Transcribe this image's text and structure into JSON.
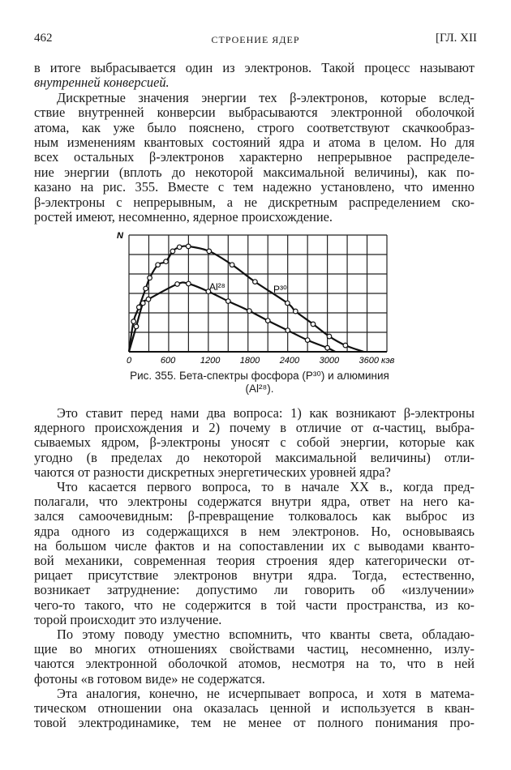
{
  "header": {
    "page_number": "462",
    "running_title": "СТРОЕНИЕ ЯДЕР",
    "chapter": "[ГЛ. XII"
  },
  "top_lines": [
    {
      "text": "в итоге выбрасывается один из электронов. Такой процесс называют",
      "indent": false
    },
    {
      "text": "внутренней конверсией.",
      "indent": false,
      "italic": true,
      "last": true
    },
    {
      "text": "Дискретные значения энергии тех β-электронов, которые вслед-",
      "indent": true
    },
    {
      "text": "ствие внутренней конверсии выбрасываются электронной оболочкой",
      "indent": false
    },
    {
      "text": "атома, как уже было пояснено, строго соответствуют скачкообраз-",
      "indent": false
    },
    {
      "text": "ным изменениям квантовых состояний ядра и атома в целом. Но для",
      "indent": false
    },
    {
      "text": "всех остальных β-электронов характерно непрерывное распределе-",
      "indent": false
    },
    {
      "text": "ние энергии (вплоть до некоторой максимальной величины), как по-",
      "indent": false
    },
    {
      "text": "казано на рис. 355. Вместе с тем надежно установлено, что именно",
      "indent": false
    },
    {
      "text": "β-электроны с непрерывным, а не дискретным распределением ско-",
      "indent": false
    },
    {
      "text": "ростей имеют, несомненно, ядерное происхождение.",
      "indent": false,
      "last": true
    }
  ],
  "figure": {
    "caption_line1": "Рис. 355. Бета-спектры фосфора (P³⁰) и алюминия",
    "caption_line2": "(Al²⁸).",
    "chart_data": {
      "type": "line",
      "ylabel": "N",
      "xlabel": "кэв",
      "x_ticks": [
        "0",
        "600",
        "1200",
        "1800",
        "2400",
        "3000",
        "3600 кэв"
      ],
      "x_tick_values": [
        0,
        600,
        1200,
        1800,
        2400,
        3000,
        3600
      ],
      "xlim": [
        0,
        3900
      ],
      "ylim": [
        0,
        6
      ],
      "grid": true,
      "series": [
        {
          "name": "P³⁰",
          "points": [
            [
              0,
              0
            ],
            [
              69,
              1.56
            ],
            [
              151,
              2.29
            ],
            [
              253,
              3.25
            ],
            [
              314,
              3.8
            ],
            [
              437,
              4.47
            ],
            [
              559,
              4.64
            ],
            [
              661,
              5.17
            ],
            [
              763,
              5.38
            ],
            [
              898,
              5.42
            ],
            [
              1212,
              5.17
            ],
            [
              1559,
              4.47
            ],
            [
              1906,
              3.6
            ],
            [
              2396,
              2.5
            ],
            [
              2518,
              2.08
            ],
            [
              2784,
              1.42
            ],
            [
              3029,
              0.79
            ],
            [
              3273,
              0.33
            ],
            [
              3550,
              0
            ]
          ]
        },
        {
          "name": "Al²⁸",
          "points": [
            [
              0,
              0
            ],
            [
              110,
              1.3
            ],
            [
              212,
              2.5
            ],
            [
              294,
              2.7
            ],
            [
              730,
              3.48
            ],
            [
              900,
              3.5
            ],
            [
              1200,
              3.1
            ],
            [
              1500,
              2.6
            ],
            [
              1820,
              2.1
            ],
            [
              2100,
              1.6
            ],
            [
              2400,
              1.1
            ],
            [
              2700,
              0.6
            ],
            [
              3000,
              0.2
            ],
            [
              3120,
              0
            ]
          ]
        }
      ]
    }
  },
  "bottom_lines": [
    {
      "text": "Это ставит перед нами два вопроса: 1) как возникают β-электроны",
      "indent": true
    },
    {
      "text": "ядерного происхождения и 2) почему в отличие от α-частиц, выбра-",
      "indent": false
    },
    {
      "text": "сываемых ядром, β-электроны уносят с собой энергии, которые как",
      "indent": false
    },
    {
      "text": "угодно (в пределах до некоторой максимальной величины) отли-",
      "indent": false
    },
    {
      "text": "чаются от разности дискретных энергетических уровней ядра?",
      "indent": false,
      "last": true
    },
    {
      "text": "Что касается первого вопроса, то в начале XX в., когда пред-",
      "indent": true
    },
    {
      "text": "полагали, что электроны содержатся внутри ядра, ответ на него ка-",
      "indent": false
    },
    {
      "text": "зался самоочевидным: β-превращение толковалось как выброс из",
      "indent": false
    },
    {
      "text": "ядра одного из содержащихся в нем электронов. Но, основываясь",
      "indent": false
    },
    {
      "text": "на большом числе фактов и на сопоставлении их с выводами кванто-",
      "indent": false
    },
    {
      "text": "вой механики, современная теория строения ядер категорически от-",
      "indent": false
    },
    {
      "text": "рицает присутствие электронов внутри ядра. Тогда, естественно,",
      "indent": false
    },
    {
      "text": "возникает затруднение: допустимо ли говорить об «излучении»",
      "indent": false
    },
    {
      "text": "чего-то такого, что не содержится в той части пространства, из ко-",
      "indent": false
    },
    {
      "text": "торой происходит это излучение.",
      "indent": false,
      "last": true
    },
    {
      "text": "По этому поводу уместно вспомнить, что кванты света, обладаю-",
      "indent": true
    },
    {
      "text": "щие во многих отношениях свойствами частиц, несомненно, излу-",
      "indent": false
    },
    {
      "text": "чаются электронной оболочкой атомов, несмотря на то, что в ней",
      "indent": false
    },
    {
      "text": "фотоны «в готовом виде» не содержатся.",
      "indent": false,
      "last": true
    },
    {
      "text": "Эта аналогия, конечно, не исчерпывает вопроса, и хотя в матема-",
      "indent": true
    },
    {
      "text": "тическом отношении она оказалась ценной и используется в кван-",
      "indent": false
    },
    {
      "text": "товой электродинамике, тем не менее от полного понимания про-",
      "indent": false
    }
  ]
}
